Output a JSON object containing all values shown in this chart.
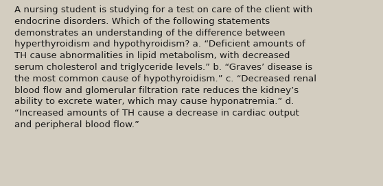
{
  "lines": [
    "A nursing student is studying for a test on care of the client with",
    "endocrine disorders. Which of the following statements",
    "demonstrates an understanding of the difference between",
    "hyperthyroidism and hypothyroidism? a. “Deficient amounts of",
    "TH cause abnormalities in lipid metabolism, with decreased",
    "serum cholesterol and triglyceride levels.” b. “Graves’ disease is",
    "the most common cause of hypothyroidism.” c. “Decreased renal",
    "blood flow and glomerular filtration rate reduces the kidney’s",
    "ability to excrete water, which may cause hyponatremia.” d.",
    "“Increased amounts of TH cause a decrease in cardiac output",
    "and peripheral blood flow.”"
  ],
  "background_color": "#d3cdc0",
  "text_color": "#1a1a1a",
  "font_size": 9.6,
  "font_family": "DejaVu Sans",
  "fig_width": 5.58,
  "fig_height": 2.72,
  "dpi": 100
}
